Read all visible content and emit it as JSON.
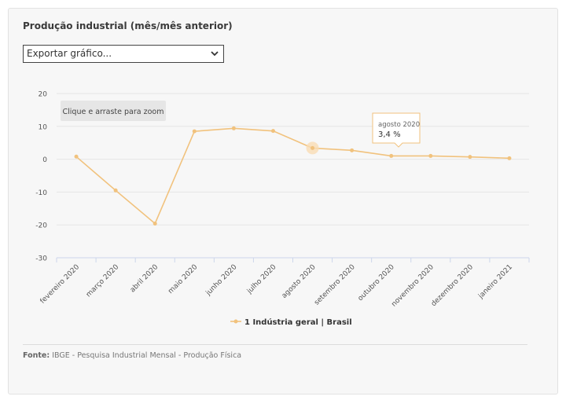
{
  "header": {
    "title": "Produção industrial (mês/mês anterior)",
    "export_label": "Exportar gráfico..."
  },
  "zoom_hint": "Clique e arraste para zoom",
  "tooltip": {
    "title": "agosto 2020",
    "value": "3,4 %"
  },
  "footer": {
    "source_label": "Fonte:",
    "source_text": "IBGE - Pesquisa Industrial Mensal - Produção Física"
  },
  "colors": {
    "series": "#f1c27d",
    "highlight": "#f9dcb4"
  },
  "chart_data": {
    "type": "line",
    "title": "Produção industrial (mês/mês anterior)",
    "categories": [
      "fevereiro 2020",
      "março 2020",
      "abril 2020",
      "maio 2020",
      "junho 2020",
      "julho 2020",
      "agosto 2020",
      "setembro 2020",
      "outubro 2020",
      "novembro 2020",
      "dezembro 2020",
      "janeiro 2021"
    ],
    "series": [
      {
        "name": "1 Indústria geral | Brasil",
        "values": [
          0.8,
          -9.5,
          -19.6,
          8.5,
          9.4,
          8.6,
          3.4,
          2.7,
          1.0,
          1.0,
          0.7,
          0.3
        ]
      }
    ],
    "yticks": [
      20,
      10,
      0,
      -10,
      -20,
      -30
    ],
    "ylim": [
      -30,
      20
    ],
    "legend": "bottom-center",
    "grid": true
  }
}
